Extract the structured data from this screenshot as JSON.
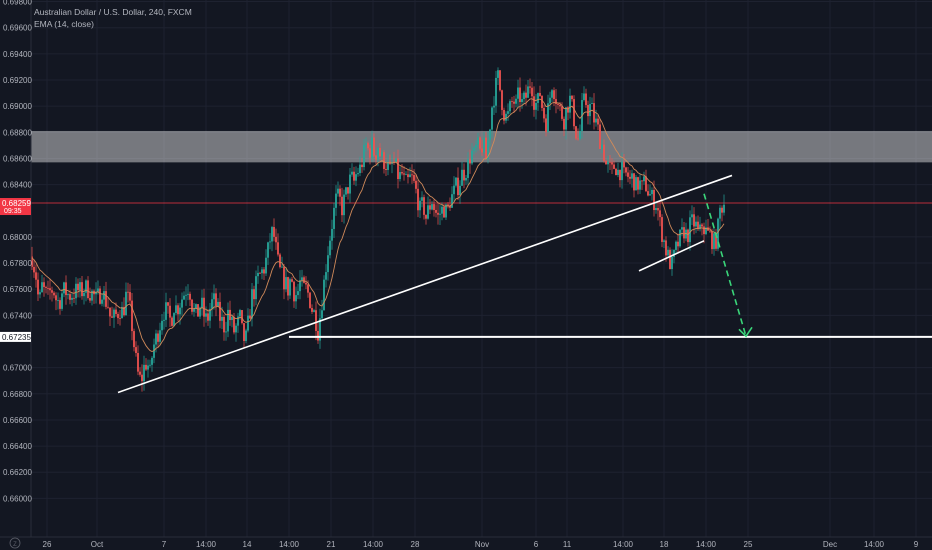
{
  "legend": {
    "symbol_title": "Australian Dollar / U.S. Dollar, 240, FXCM",
    "indicator": "EMA (14, close)"
  },
  "chart_data": {
    "type": "candlestick",
    "y_range": [
      0.6585,
      0.6985
    ],
    "y_ticks": [
      "0.69800",
      "0.69600",
      "0.69400",
      "0.69200",
      "0.69000",
      "0.68800",
      "0.68600",
      "0.68400",
      "0.68000",
      "0.67800",
      "0.67600",
      "0.67400",
      "0.67000",
      "0.66800",
      "0.66600",
      "0.66400",
      "0.66200",
      "0.66000"
    ],
    "x_ticks": [
      "26",
      "Oct",
      "7",
      "14:00",
      "14",
      "14:00",
      "21",
      "14:00",
      "28",
      "Nov",
      "6",
      "11",
      "14:00",
      "18",
      "14:00",
      "25",
      "Dec",
      "14:00",
      "9"
    ],
    "price_labels": [
      {
        "value": 0.68259,
        "text": "0.68259",
        "sub": "09:35",
        "color": "#f23645"
      },
      {
        "value": 0.67235,
        "text": "0.67235",
        "color": "#ffffff"
      }
    ],
    "resistance_zone": [
      0.6857,
      0.6881
    ],
    "colors": {
      "up": "#26a69a",
      "down": "#ef5350",
      "ema": "#d18a5a",
      "background": "#131722",
      "grid": "#1e2230"
    },
    "close_path": [
      [
        0,
        0.6785
      ],
      [
        4,
        0.677
      ],
      [
        7,
        0.6748
      ],
      [
        10,
        0.6762
      ],
      [
        13,
        0.6757
      ],
      [
        16,
        0.6754
      ],
      [
        19,
        0.676
      ],
      [
        22,
        0.6758
      ],
      [
        25,
        0.675
      ],
      [
        28,
        0.6752
      ],
      [
        31,
        0.6759
      ],
      [
        34,
        0.6758
      ],
      [
        37,
        0.6755
      ],
      [
        40,
        0.6756
      ],
      [
        43,
        0.6758
      ],
      [
        46,
        0.6759
      ],
      [
        49,
        0.6758
      ],
      [
        52,
        0.676
      ],
      [
        55,
        0.6761
      ],
      [
        58,
        0.6758
      ],
      [
        61,
        0.6756
      ],
      [
        64,
        0.6752
      ],
      [
        67,
        0.6755
      ],
      [
        70,
        0.676
      ],
      [
        73,
        0.6752
      ],
      [
        76,
        0.6748
      ],
      [
        79,
        0.6735
      ],
      [
        82,
        0.6738
      ],
      [
        85,
        0.6741
      ],
      [
        88,
        0.6745
      ],
      [
        91,
        0.6742
      ],
      [
        94,
        0.6755
      ],
      [
        97,
        0.675
      ],
      [
        100,
        0.6732
      ],
      [
        103,
        0.671
      ],
      [
        106,
        0.6695
      ],
      [
        109,
        0.6689
      ],
      [
        112,
        0.67
      ],
      [
        115,
        0.6705
      ],
      [
        118,
        0.6695
      ],
      [
        121,
        0.6715
      ],
      [
        124,
        0.6722
      ],
      [
        127,
        0.673
      ],
      [
        130,
        0.674
      ],
      [
        133,
        0.6745
      ],
      [
        136,
        0.674
      ],
      [
        139,
        0.6735
      ],
      [
        142,
        0.6748
      ],
      [
        145,
        0.6745
      ],
      [
        148,
        0.675
      ],
      [
        151,
        0.6755
      ],
      [
        154,
        0.676
      ],
      [
        157,
        0.6763
      ],
      [
        160,
        0.6748
      ],
      [
        163,
        0.674
      ],
      [
        166,
        0.6742
      ],
      [
        169,
        0.675
      ],
      [
        172,
        0.674
      ],
      [
        175,
        0.6735
      ],
      [
        178,
        0.6745
      ],
      [
        181,
        0.6752
      ],
      [
        184,
        0.6748
      ],
      [
        187,
        0.674
      ],
      [
        190,
        0.6735
      ],
      [
        193,
        0.673
      ],
      [
        196,
        0.6742
      ],
      [
        199,
        0.6735
      ],
      [
        202,
        0.6728
      ],
      [
        205,
        0.6732
      ],
      [
        208,
        0.6738
      ],
      [
        211,
        0.6722
      ],
      [
        214,
        0.6722
      ],
      [
        217,
        0.6738
      ],
      [
        220,
        0.6755
      ],
      [
        223,
        0.676
      ],
      [
        226,
        0.6768
      ],
      [
        229,
        0.6772
      ],
      [
        232,
        0.6776
      ],
      [
        235,
        0.6785
      ],
      [
        238,
        0.6798
      ],
      [
        241,
        0.6805
      ],
      [
        244,
        0.679
      ],
      [
        247,
        0.6775
      ],
      [
        250,
        0.677
      ],
      [
        253,
        0.6765
      ],
      [
        256,
        0.676
      ],
      [
        259,
        0.677
      ],
      [
        262,
        0.6758
      ],
      [
        265,
        0.6755
      ],
      [
        268,
        0.6765
      ],
      [
        271,
        0.676
      ],
      [
        274,
        0.676
      ],
      [
        277,
        0.6755
      ],
      [
        280,
        0.6745
      ],
      [
        283,
        0.674
      ],
      [
        286,
        0.6728
      ],
      [
        289,
        0.6745
      ],
      [
        292,
        0.6765
      ],
      [
        295,
        0.6785
      ],
      [
        298,
        0.68
      ],
      [
        301,
        0.6815
      ],
      [
        304,
        0.6828
      ],
      [
        307,
        0.683
      ],
      [
        310,
        0.6822
      ],
      [
        313,
        0.683
      ],
      [
        316,
        0.6838
      ],
      [
        319,
        0.6845
      ],
      [
        322,
        0.6842
      ],
      [
        325,
        0.685
      ],
      [
        328,
        0.6852
      ],
      [
        331,
        0.686
      ],
      [
        334,
        0.687
      ],
      [
        337,
        0.6865
      ],
      [
        340,
        0.687
      ],
      [
        343,
        0.6862
      ],
      [
        346,
        0.687
      ],
      [
        349,
        0.686
      ],
      [
        352,
        0.6858
      ],
      [
        355,
        0.6855
      ],
      [
        358,
        0.685
      ],
      [
        361,
        0.6858
      ],
      [
        364,
        0.6852
      ],
      [
        367,
        0.6845
      ],
      [
        370,
        0.6848
      ],
      [
        373,
        0.684
      ],
      [
        376,
        0.6842
      ],
      [
        379,
        0.6846
      ],
      [
        382,
        0.684
      ],
      [
        385,
        0.6832
      ],
      [
        388,
        0.682
      ],
      [
        391,
        0.6825
      ],
      [
        394,
        0.6815
      ],
      [
        397,
        0.6822
      ],
      [
        400,
        0.6828
      ],
      [
        403,
        0.682
      ],
      [
        406,
        0.6815
      ],
      [
        409,
        0.682
      ],
      [
        412,
        0.6822
      ],
      [
        415,
        0.6818
      ],
      [
        418,
        0.6828
      ],
      [
        421,
        0.6832
      ],
      [
        424,
        0.6838
      ],
      [
        427,
        0.684
      ],
      [
        430,
        0.6848
      ],
      [
        433,
        0.685
      ],
      [
        436,
        0.6855
      ],
      [
        439,
        0.6865
      ],
      [
        442,
        0.6862
      ],
      [
        445,
        0.687
      ],
      [
        448,
        0.6865
      ],
      [
        451,
        0.6872
      ],
      [
        454,
        0.686
      ],
      [
        457,
        0.688
      ],
      [
        460,
        0.69
      ],
      [
        463,
        0.6912
      ],
      [
        466,
        0.6922
      ],
      [
        469,
        0.6908
      ],
      [
        472,
        0.6895
      ],
      [
        475,
        0.689
      ],
      [
        478,
        0.6898
      ],
      [
        481,
        0.6905
      ],
      [
        484,
        0.69
      ],
      [
        487,
        0.691
      ],
      [
        490,
        0.6902
      ],
      [
        493,
        0.6905
      ],
      [
        496,
        0.6912
      ],
      [
        499,
        0.692
      ],
      [
        502,
        0.6905
      ],
      [
        505,
        0.69
      ],
      [
        508,
        0.691
      ],
      [
        511,
        0.6895
      ],
      [
        514,
        0.6888
      ],
      [
        517,
        0.6902
      ],
      [
        520,
        0.6918
      ],
      [
        523,
        0.691
      ],
      [
        526,
        0.69
      ],
      [
        529,
        0.6895
      ],
      [
        532,
        0.689
      ],
      [
        535,
        0.69
      ],
      [
        538,
        0.6905
      ],
      [
        541,
        0.6895
      ],
      [
        544,
        0.688
      ],
      [
        547,
        0.6872
      ],
      [
        550,
        0.6898
      ],
      [
        553,
        0.6905
      ],
      [
        556,
        0.6898
      ],
      [
        559,
        0.69
      ],
      [
        562,
        0.689
      ],
      [
        565,
        0.6885
      ],
      [
        568,
        0.6875
      ],
      [
        571,
        0.6868
      ],
      [
        574,
        0.6855
      ],
      [
        577,
        0.6852
      ],
      [
        580,
        0.685
      ],
      [
        583,
        0.6856
      ],
      [
        586,
        0.685
      ],
      [
        589,
        0.6852
      ],
      [
        592,
        0.6846
      ],
      [
        595,
        0.6848
      ],
      [
        598,
        0.6843
      ],
      [
        601,
        0.6846
      ],
      [
        604,
        0.6838
      ],
      [
        607,
        0.6842
      ],
      [
        610,
        0.6837
      ],
      [
        613,
        0.6842
      ],
      [
        616,
        0.6835
      ],
      [
        619,
        0.683
      ],
      [
        622,
        0.6828
      ],
      [
        625,
        0.6825
      ],
      [
        628,
        0.681
      ],
      [
        631,
        0.68
      ],
      [
        634,
        0.679
      ],
      [
        637,
        0.6782
      ],
      [
        640,
        0.6778
      ],
      [
        643,
        0.6788
      ],
      [
        646,
        0.6795
      ],
      [
        649,
        0.68
      ],
      [
        652,
        0.6805
      ],
      [
        655,
        0.68
      ],
      [
        658,
        0.6808
      ],
      [
        661,
        0.6812
      ],
      [
        664,
        0.6808
      ],
      [
        667,
        0.68
      ],
      [
        670,
        0.681
      ],
      [
        673,
        0.6805
      ],
      [
        676,
        0.6802
      ],
      [
        679,
        0.68
      ],
      [
        682,
        0.6795
      ],
      [
        685,
        0.68
      ],
      [
        688,
        0.682
      ],
      [
        691,
        0.6826
      ],
      [
        693,
        0.6826
      ]
    ]
  },
  "drawings": {
    "up_trendline": [
      [
        118,
        0.6681
      ],
      [
        732,
        0.6847
      ]
    ],
    "channel_lower": [
      [
        639,
        0.6774
      ],
      [
        704,
        0.6797
      ]
    ],
    "support_line": [
      [
        289,
        0.67235
      ],
      [
        932,
        0.67235
      ]
    ],
    "projection_arrow": [
      [
        704,
        0.6833
      ],
      [
        746,
        0.6724
      ]
    ]
  }
}
